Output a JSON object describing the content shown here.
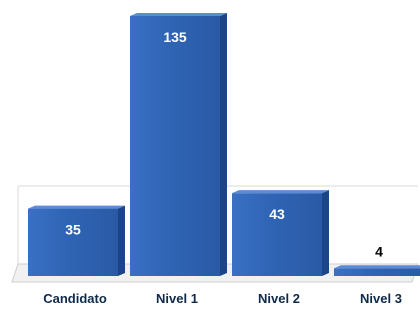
{
  "chart_data": {
    "type": "bar",
    "style": "3d-column",
    "categories": [
      "Candidato",
      "Nivel 1",
      "Nivel 2",
      "Nivel 3"
    ],
    "values": [
      35,
      135,
      43,
      4
    ],
    "title": "",
    "xlabel": "",
    "ylabel": "",
    "ylim": [
      0,
      135
    ],
    "grid": false,
    "legend": "none",
    "bar_color": "#2f64b4",
    "bar_side_color": "#1c4587",
    "bar_top_color": "#5b8ad6",
    "floor_color": "#f1f1f1",
    "label_color": "#0f2a4a"
  }
}
